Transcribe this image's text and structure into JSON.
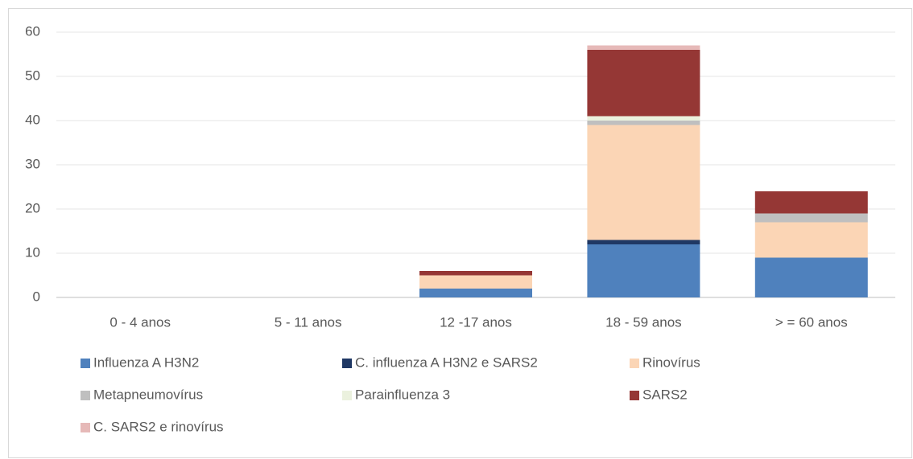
{
  "chart_data": {
    "type": "stacked_bar",
    "categories": [
      "0 - 4  anos",
      "5 - 11 anos",
      "12 -17 anos",
      "18 - 59 anos",
      "> = 60 anos"
    ],
    "series": [
      {
        "name": "Influenza A H3N2",
        "color": "#4f81bd",
        "values": [
          0,
          0,
          2,
          12,
          9
        ]
      },
      {
        "name": "C. influenza A H3N2 e SARS2",
        "color": "#1f3864",
        "values": [
          0,
          0,
          0,
          1,
          0
        ]
      },
      {
        "name": "Rinovírus",
        "color": "#fbd5b5",
        "values": [
          0,
          0,
          3,
          26,
          8
        ]
      },
      {
        "name": "Metapneumovírus",
        "color": "#bfbfbf",
        "values": [
          0,
          0,
          0,
          1,
          2
        ]
      },
      {
        "name": "Parainfluenza 3",
        "color": "#ebf1de",
        "values": [
          0,
          0,
          0,
          1,
          0
        ]
      },
      {
        "name": "SARS2",
        "color": "#953735",
        "values": [
          0,
          0,
          1,
          15,
          5
        ]
      },
      {
        "name": "C. SARS2 e rinovírus",
        "color": "#e6b9b8",
        "values": [
          0,
          0,
          0,
          1,
          0
        ]
      }
    ],
    "ylim": [
      0,
      60
    ],
    "yticks": [
      0,
      10,
      20,
      30,
      40,
      50,
      60
    ],
    "grid": true,
    "legend": "bottom"
  }
}
